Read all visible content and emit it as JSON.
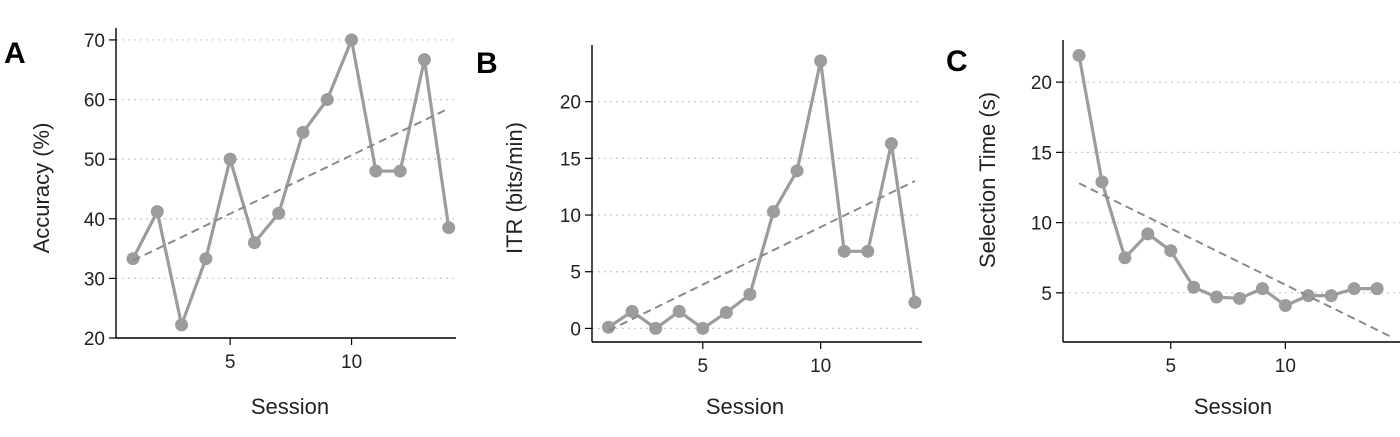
{
  "chart_data": [
    {
      "type": "line",
      "panel": "A",
      "xlabel": "Session",
      "ylabel": "Accuracy (%)",
      "xlim": [
        0.3,
        14.3
      ],
      "ylim": [
        20,
        72
      ],
      "xticks": [
        5,
        10
      ],
      "yticks": [
        20,
        30,
        40,
        50,
        60,
        70
      ],
      "grid": "horizontal dotted",
      "series": [
        {
          "x": [
            1,
            2,
            3,
            4,
            5,
            6,
            7,
            8,
            9,
            10,
            11,
            12,
            13,
            14
          ],
          "values": [
            33.3,
            41.2,
            22.2,
            33.3,
            50.0,
            36.0,
            40.9,
            54.5,
            60.0,
            70.0,
            48.0,
            48.0,
            66.7,
            38.5
          ]
        }
      ],
      "trend": {
        "x": [
          1,
          14
        ],
        "y": [
          33.0,
          58.5
        ]
      }
    },
    {
      "type": "line",
      "panel": "B",
      "xlabel": "Session",
      "ylabel": "ITR (bits/min)",
      "xlim": [
        0.3,
        14.3
      ],
      "ylim": [
        -1.2,
        25
      ],
      "xticks": [
        5,
        10
      ],
      "yticks": [
        0,
        5,
        10,
        15,
        20
      ],
      "grid": "horizontal dotted",
      "series": [
        {
          "x": [
            1,
            2,
            3,
            4,
            5,
            6,
            7,
            8,
            9,
            10,
            11,
            12,
            13,
            14
          ],
          "values": [
            0.1,
            1.5,
            0.0,
            1.5,
            0.0,
            1.4,
            3.0,
            10.3,
            13.9,
            23.6,
            6.8,
            6.8,
            16.3,
            2.3
          ]
        }
      ],
      "trend": {
        "x": [
          1,
          14
        ],
        "y": [
          -0.2,
          13.0
        ]
      }
    },
    {
      "type": "line",
      "panel": "C",
      "xlabel": "Session",
      "ylabel": "Selection Time (s)",
      "xlim": [
        0.3,
        15
      ],
      "ylim": [
        1.5,
        23
      ],
      "xticks": [
        5,
        10
      ],
      "yticks": [
        5,
        10,
        15,
        20
      ],
      "grid": "horizontal dotted",
      "series": [
        {
          "x": [
            1,
            2,
            3,
            4,
            5,
            6,
            7,
            8,
            9,
            10,
            11,
            12,
            13,
            14
          ],
          "values": [
            21.9,
            12.9,
            7.5,
            9.2,
            8.0,
            5.4,
            4.7,
            4.6,
            5.3,
            4.1,
            4.8,
            4.8,
            5.3,
            5.3
          ]
        }
      ],
      "trend": {
        "x": [
          1,
          14.7
        ],
        "y": [
          12.8,
          1.8
        ]
      }
    }
  ]
}
